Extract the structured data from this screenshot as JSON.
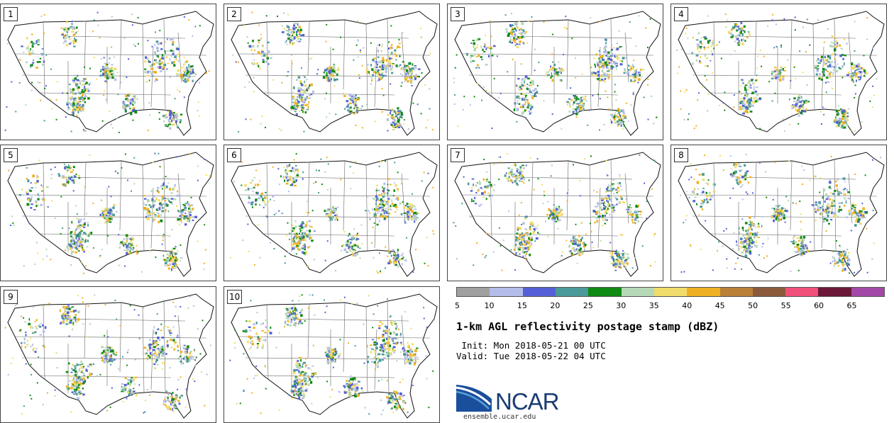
{
  "panels": [
    {
      "label": "1"
    },
    {
      "label": "2"
    },
    {
      "label": "3"
    },
    {
      "label": "4"
    },
    {
      "label": "5"
    },
    {
      "label": "6"
    },
    {
      "label": "7"
    },
    {
      "label": "8"
    },
    {
      "label": "9"
    },
    {
      "label": "10"
    }
  ],
  "colorbar": {
    "colors": [
      "#a0a0a0",
      "#b4bde8",
      "#5560d6",
      "#4b9a9a",
      "#0f8a12",
      "#b6d8b6",
      "#f0dc6a",
      "#eeb124",
      "#b98038",
      "#8b5a3c",
      "#f0507a",
      "#6c1838",
      "#a448a8"
    ],
    "ticks": [
      "5",
      "10",
      "15",
      "20",
      "25",
      "30",
      "35",
      "40",
      "45",
      "50",
      "55",
      "60",
      "65"
    ]
  },
  "title": "1-km AGL reflectivity postage stamp (dBZ)",
  "init": " Init: Mon 2018-05-21 00 UTC",
  "valid": "Valid: Tue 2018-05-22 04 UTC",
  "logo": {
    "text": "NCAR",
    "url_text": "ensemble.ucar.edu",
    "colors": [
      "#1a4f9c",
      "#5aa0d8"
    ]
  }
}
